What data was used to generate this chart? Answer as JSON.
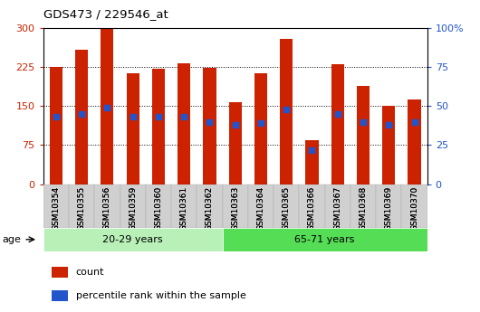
{
  "title": "GDS473 / 229546_at",
  "samples": [
    "GSM10354",
    "GSM10355",
    "GSM10356",
    "GSM10359",
    "GSM10360",
    "GSM10361",
    "GSM10362",
    "GSM10363",
    "GSM10364",
    "GSM10365",
    "GSM10366",
    "GSM10367",
    "GSM10368",
    "GSM10369",
    "GSM10370"
  ],
  "counts": [
    225,
    258,
    298,
    213,
    222,
    232,
    224,
    158,
    213,
    280,
    85,
    230,
    188,
    150,
    163
  ],
  "percentile_vals": [
    43,
    45,
    49,
    43,
    43,
    43,
    40,
    38,
    39,
    48,
    22,
    45,
    40,
    38,
    40
  ],
  "bar_color": "#cc2200",
  "blue_color": "#2255cc",
  "ylim_left": [
    0,
    300
  ],
  "ylim_right": [
    0,
    100
  ],
  "yticks_left": [
    0,
    75,
    150,
    225,
    300
  ],
  "yticks_right": [
    0,
    25,
    50,
    75,
    100
  ],
  "group1_label": "20-29 years",
  "group2_label": "65-71 years",
  "group1_count": 7,
  "group2_count": 8,
  "age_label": "age",
  "legend_count": "count",
  "legend_percentile": "percentile rank within the sample",
  "bg_plot": "#ffffff",
  "bg_group1": "#b8f0b8",
  "bg_group2": "#55dd55",
  "bar_width": 0.5
}
